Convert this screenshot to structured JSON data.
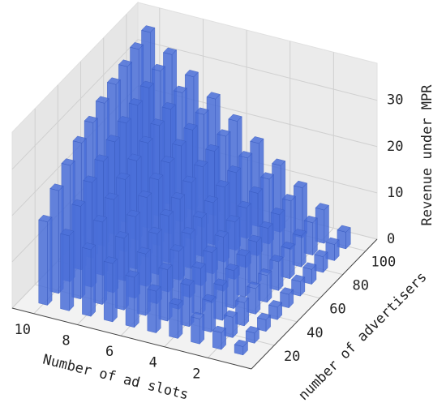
{
  "chart_data": {
    "type": "bar3d",
    "x_label": "Number of ad slots",
    "y_label": "number of advertisers",
    "z_label": "Revenue under MPR",
    "x": [
      1,
      2,
      3,
      4,
      5,
      6,
      7,
      8,
      9,
      10
    ],
    "y": [
      10,
      20,
      30,
      40,
      50,
      60,
      70,
      80,
      90,
      100
    ],
    "values": [
      [
        1.8,
        3.6,
        5.4,
        7.2,
        9.0,
        10.8,
        12.6,
        14.4,
        16.2,
        18.0
      ],
      [
        2.2,
        4.4,
        6.7,
        8.9,
        11.1,
        13.3,
        15.5,
        17.8,
        20.0,
        22.2
      ],
      [
        2.5,
        5.0,
        7.5,
        10.0,
        12.5,
        15.1,
        17.6,
        20.1,
        22.6,
        25.1
      ],
      [
        2.7,
        5.5,
        8.2,
        10.9,
        13.7,
        16.4,
        19.2,
        21.9,
        24.6,
        27.4
      ],
      [
        2.9,
        5.8,
        8.8,
        11.7,
        14.6,
        17.5,
        20.5,
        23.4,
        26.3,
        29.2
      ],
      [
        3.1,
        6.2,
        9.3,
        12.4,
        15.4,
        18.5,
        21.6,
        24.7,
        27.8,
        30.9
      ],
      [
        3.2,
        6.5,
        9.7,
        12.9,
        16.2,
        19.4,
        22.7,
        25.9,
        29.1,
        32.4
      ],
      [
        3.4,
        6.7,
        10.1,
        13.5,
        16.8,
        20.2,
        23.6,
        26.9,
        30.3,
        33.7
      ],
      [
        3.5,
        7.0,
        10.5,
        14.0,
        17.4,
        20.9,
        24.4,
        27.9,
        31.4,
        34.9
      ],
      [
        3.6,
        7.2,
        10.8,
        14.4,
        18.0,
        21.6,
        25.2,
        28.8,
        32.4,
        36.0
      ]
    ],
    "color": "#4a6fd8",
    "xlim": [
      0,
      11
    ],
    "xticks": [
      2,
      4,
      6,
      8,
      10
    ],
    "ylim": [
      0,
      110
    ],
    "yticks": [
      20,
      40,
      60,
      80,
      100
    ],
    "zlim": [
      0,
      38
    ],
    "zticks": [
      0,
      10,
      20,
      30
    ],
    "grid": true
  }
}
